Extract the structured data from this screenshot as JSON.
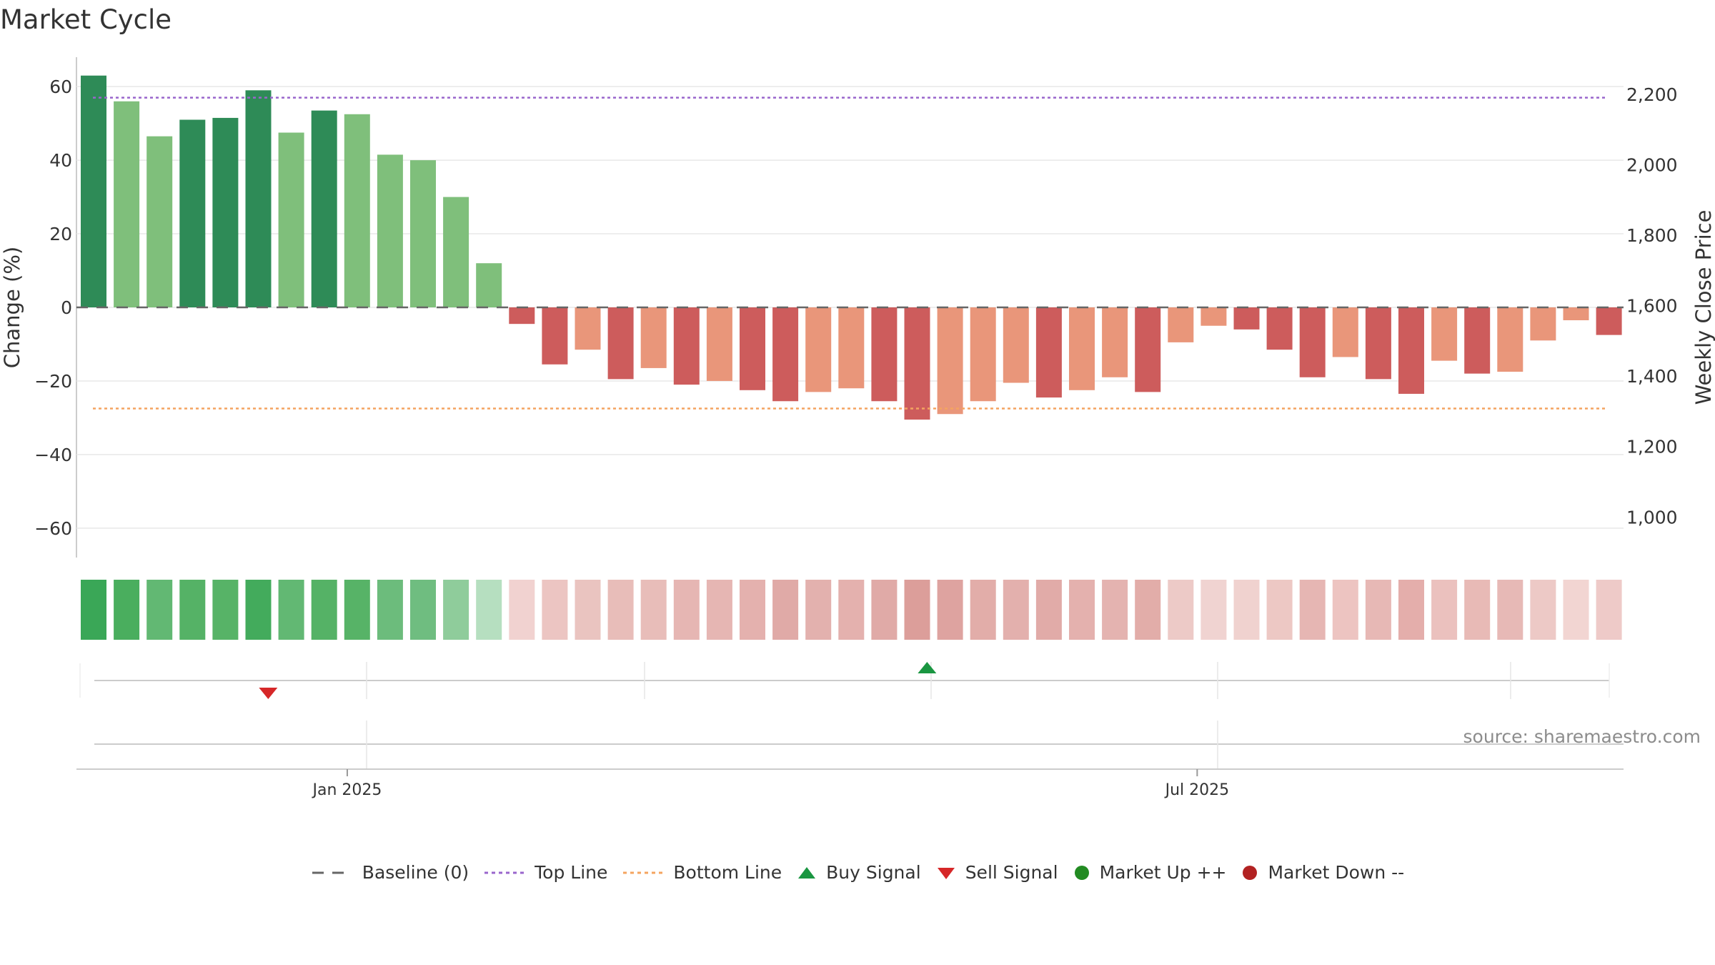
{
  "title": "Market Cycle",
  "source": "source: sharemaestro.com",
  "colors": {
    "up_strong": "#2e8b57",
    "up_light": "#7fbf7b",
    "down_strong": "#cd5c5c",
    "down_light": "#e9967a",
    "top_line": "#9966cc",
    "bottom_line": "#f4a460",
    "baseline": "#666666",
    "buy": "#1a9641",
    "sell": "#d62728",
    "market_up": "#228b22",
    "market_down": "#b22222"
  },
  "chart_data": {
    "type": "bar",
    "ylabel": "Change (%)",
    "y2label": "Weekly Close Price",
    "ylim": [
      -68,
      68
    ],
    "yticks": [
      -60,
      -40,
      -20,
      0,
      20,
      40,
      60
    ],
    "ytick_labels": [
      "−60",
      "−40",
      "−20",
      "0",
      "20",
      "40",
      "60"
    ],
    "y2lim": [
      885,
      2305
    ],
    "y2ticks": [
      1000,
      1200,
      1400,
      1600,
      1800,
      2000,
      2200
    ],
    "y2tick_labels": [
      "1,000",
      "1,200",
      "1,400",
      "1,600",
      "1,800",
      "2,000",
      "2,200"
    ],
    "xtick_labels": [
      "Jan 2025",
      "Jul 2025"
    ],
    "xtick_weeks": [
      8.7,
      34.5
    ],
    "top_line": 57,
    "bottom_line": -27.5,
    "baseline": 0,
    "weeks": [
      1,
      2,
      3,
      4,
      5,
      6,
      7,
      8,
      9,
      10,
      11,
      12,
      13,
      14,
      15,
      16,
      17,
      18,
      19,
      20,
      21,
      22,
      23,
      24,
      25,
      26,
      27,
      28,
      29,
      30,
      31,
      32,
      33,
      34,
      35,
      36,
      37,
      38,
      39,
      40,
      41,
      42,
      43,
      44,
      45,
      46,
      47
    ],
    "values": [
      63,
      56,
      46.5,
      51,
      51.5,
      59,
      47.5,
      53.5,
      52.5,
      41.5,
      40,
      30,
      12,
      -4.5,
      -15.5,
      -11.5,
      -19.5,
      -16.5,
      -21,
      -20,
      -22.5,
      -25.5,
      -23,
      -22,
      -25.5,
      -30.5,
      -29,
      -25.5,
      -20.5,
      -24.5,
      -22.5,
      -19,
      -23,
      -9.5,
      -5,
      -6,
      -11.5,
      -19,
      -13.5,
      -19.5,
      -23.5,
      -14.5,
      -18,
      -17.5,
      -9,
      -3.5,
      -7.5
    ],
    "bar_shades": [
      "strong",
      "light",
      "light",
      "strong",
      "strong",
      "strong",
      "light",
      "strong",
      "light",
      "light",
      "light",
      "light",
      "light",
      "strong",
      "strong",
      "light",
      "strong",
      "light",
      "strong",
      "light",
      "strong",
      "strong",
      "light",
      "light",
      "strong",
      "strong",
      "light",
      "light",
      "light",
      "strong",
      "light",
      "light",
      "strong",
      "light",
      "light",
      "strong",
      "strong",
      "strong",
      "light",
      "strong",
      "strong",
      "light",
      "strong",
      "light",
      "light",
      "light",
      "strong"
    ],
    "heat_colors": [
      "#3aa757",
      "#4aae5e",
      "#62b873",
      "#55b266",
      "#57b367",
      "#43ab5c",
      "#62b873",
      "#55b266",
      "#57b367",
      "#6cbc7c",
      "#6fbd80",
      "#8fcc9b",
      "#b6dfc0",
      "#f1d2d0",
      "#ecc5c2",
      "#eac4c0",
      "#e8bdb9",
      "#e8bdb9",
      "#e6b6b3",
      "#e6b6b3",
      "#e4b1ae",
      "#e0aaa7",
      "#e3b1ae",
      "#e4b1ae",
      "#e0aaa7",
      "#dc9e9a",
      "#dea3a0",
      "#e2ada9",
      "#e3b0ad",
      "#e1aba8",
      "#e4b1ae",
      "#e4b3b0",
      "#e2ada9",
      "#edcac7",
      "#f0d3d1",
      "#f0d2cf",
      "#edc8c4",
      "#e6b6b3",
      "#edc4c1",
      "#e7b8b5",
      "#e4aeab",
      "#ebc1be",
      "#e8bab6",
      "#e7b9b6",
      "#edc9c6",
      "#f2d5d2",
      "#eecac8"
    ],
    "signals": [
      {
        "type": "sell",
        "week": 6.3
      },
      {
        "type": "buy",
        "week": 26.3
      }
    ],
    "legend": [
      "Baseline (0)",
      "Top Line",
      "Bottom Line",
      "Buy Signal",
      "Sell Signal",
      "Market Up ++",
      "Market Down --"
    ]
  }
}
